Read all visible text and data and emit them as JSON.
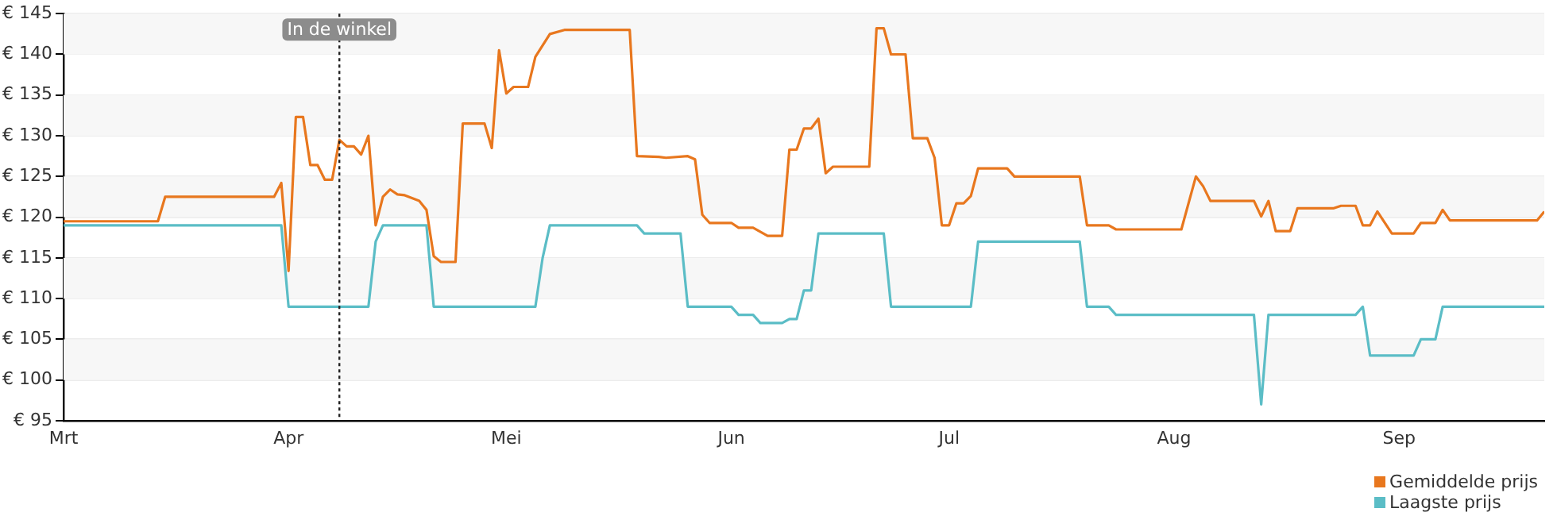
{
  "chart_data": {
    "type": "line",
    "marker": "none",
    "line_style": "solid",
    "grid": "y",
    "legend": "bottom right",
    "xlim": [
      "--03-01",
      "--09-21"
    ],
    "xticks": [
      {
        "value": "--03-01",
        "label": "Mrt"
      },
      {
        "value": "--04-01",
        "label": "Apr"
      },
      {
        "value": "--05-01",
        "label": "Mei"
      },
      {
        "value": "--06-01",
        "label": "Jun"
      },
      {
        "value": "--07-01",
        "label": "Jul"
      },
      {
        "value": "--08-01",
        "label": "Aug"
      },
      {
        "value": "--09-01",
        "label": "Sep"
      }
    ],
    "ylim": [
      95,
      145
    ],
    "yticks": [
      {
        "value": 95,
        "label": "€ 95"
      },
      {
        "value": 100,
        "label": "€ 100"
      },
      {
        "value": 105,
        "label": "€ 105"
      },
      {
        "value": 110,
        "label": "€ 110"
      },
      {
        "value": 115,
        "label": "€ 115"
      },
      {
        "value": 120,
        "label": "€ 120"
      },
      {
        "value": 125,
        "label": "€ 125"
      },
      {
        "value": 130,
        "label": "€ 130"
      },
      {
        "value": 135,
        "label": "€ 135"
      },
      {
        "value": 140,
        "label": "€ 140"
      },
      {
        "value": 145,
        "label": "€ 145"
      }
    ],
    "ref_lines": [
      {
        "axis": "x",
        "value": "--04-08",
        "label": "In de winkel",
        "color": "#222222",
        "line_style": "dotted"
      }
    ],
    "series": [
      {
        "name": "Gemiddelde prijs",
        "color": "#e8771e",
        "x": [
          "--03-01",
          "--03-14",
          "--03-15",
          "--03-30",
          "--03-31",
          "--04-01",
          "--04-02",
          "--04-03",
          "--04-04",
          "--04-05",
          "--04-06",
          "--04-07",
          "--04-08",
          "--04-09",
          "--04-10",
          "--04-11",
          "--04-12",
          "--04-13",
          "--04-14",
          "--04-15",
          "--04-16",
          "--04-17",
          "--04-19",
          "--04-20",
          "--04-21",
          "--04-22",
          "--04-24",
          "--04-25",
          "--04-28",
          "--04-29",
          "--04-30",
          "--05-01",
          "--05-02",
          "--05-04",
          "--05-05",
          "--05-07",
          "--05-09",
          "--05-18",
          "--05-19",
          "--05-22",
          "--05-23",
          "--05-26",
          "--05-27",
          "--05-28",
          "--05-29",
          "--06-01",
          "--06-02",
          "--06-04",
          "--06-06",
          "--06-08",
          "--06-09",
          "--06-10",
          "--06-11",
          "--06-12",
          "--06-13",
          "--06-14",
          "--06-15",
          "--06-20",
          "--06-21",
          "--06-22",
          "--06-23",
          "--06-25",
          "--06-26",
          "--06-28",
          "--06-29",
          "--06-30",
          "--07-01",
          "--07-02",
          "--07-03",
          "--07-04",
          "--07-05",
          "--07-09",
          "--07-10",
          "--07-19",
          "--07-20",
          "--07-23",
          "--07-24",
          "--08-02",
          "--08-04",
          "--08-05",
          "--08-06",
          "--08-12",
          "--08-13",
          "--08-14",
          "--08-15",
          "--08-17",
          "--08-18",
          "--08-23",
          "--08-24",
          "--08-26",
          "--08-27",
          "--08-28",
          "--08-29",
          "--08-31",
          "--09-03",
          "--09-04",
          "--09-06",
          "--09-07",
          "--09-08",
          "--09-20",
          "--09-21"
        ],
        "values": [
          119.5,
          119.5,
          122.5,
          122.5,
          124.2,
          113.4,
          132.3,
          132.3,
          126.4,
          126.4,
          124.6,
          124.6,
          129.5,
          128.7,
          128.7,
          127.7,
          130,
          119,
          122.5,
          123.4,
          122.8,
          122.7,
          122,
          120.9,
          115.2,
          114.5,
          114.5,
          131.5,
          131.5,
          128.5,
          140.5,
          135.2,
          136,
          136,
          139.7,
          142.5,
          143,
          143,
          127.5,
          127.4,
          127.3,
          127.5,
          127.1,
          120.3,
          119.3,
          119.3,
          118.7,
          118.7,
          117.7,
          117.7,
          128.3,
          128.3,
          130.9,
          130.9,
          132.1,
          125.4,
          126.2,
          126.2,
          143.2,
          143.2,
          140,
          140,
          129.7,
          129.7,
          127.3,
          119,
          119,
          121.7,
          121.7,
          122.6,
          126,
          126,
          125,
          125,
          119,
          119,
          118.5,
          118.5,
          125,
          123.8,
          122,
          122,
          120.1,
          122,
          118.3,
          118.3,
          121.1,
          121.1,
          121.4,
          121.4,
          119,
          119,
          120.7,
          118,
          118,
          119.3,
          119.3,
          120.9,
          119.6,
          119.6,
          120.7
        ]
      },
      {
        "name": "Laagste prijs",
        "color": "#5bbdc6",
        "x": [
          "--03-01",
          "--03-31",
          "--04-01",
          "--04-12",
          "--04-13",
          "--04-14",
          "--04-20",
          "--04-21",
          "--05-05",
          "--05-06",
          "--05-07",
          "--05-19",
          "--05-20",
          "--05-25",
          "--05-26",
          "--06-01",
          "--06-02",
          "--06-04",
          "--06-05",
          "--06-08",
          "--06-09",
          "--06-10",
          "--06-11",
          "--06-12",
          "--06-13",
          "--06-22",
          "--06-23",
          "--07-04",
          "--07-05",
          "--07-19",
          "--07-20",
          "--07-23",
          "--07-24",
          "--08-12",
          "--08-13",
          "--08-14",
          "--08-26",
          "--08-27",
          "--08-28",
          "--09-03",
          "--09-04",
          "--09-06",
          "--09-07",
          "--09-21"
        ],
        "values": [
          119,
          119,
          109,
          109,
          117,
          119,
          119,
          109,
          109,
          115,
          119,
          119,
          118,
          118,
          109,
          109,
          108,
          108,
          107,
          107,
          107.5,
          107.5,
          111,
          111,
          118,
          118,
          109,
          109,
          117,
          117,
          109,
          109,
          108,
          108,
          97,
          108,
          108,
          109,
          103,
          103,
          105,
          105,
          109,
          109
        ]
      }
    ]
  }
}
